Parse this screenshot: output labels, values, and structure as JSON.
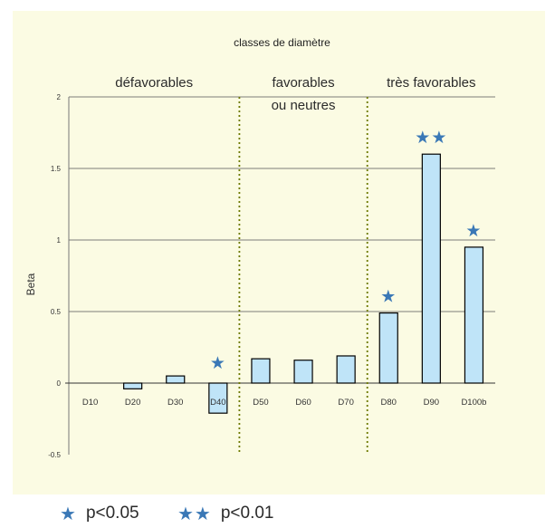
{
  "chart_data": {
    "type": "bar",
    "title": "classes de diamètre",
    "ylabel": "Beta",
    "xlabel": "",
    "categories": [
      "D10",
      "D20",
      "D30",
      "D40",
      "D50",
      "D60",
      "D70",
      "D80",
      "D90",
      "D100b"
    ],
    "values": [
      0,
      -0.04,
      0.05,
      -0.21,
      0.17,
      0.16,
      0.19,
      0.49,
      1.6,
      0.95
    ],
    "ylim": [
      -0.5,
      2
    ],
    "yticks": [
      "-0.5",
      "0",
      "0.5",
      "1",
      "1.5",
      "2"
    ],
    "ytick_values": [
      -0.5,
      0,
      0.5,
      1,
      1.5,
      2
    ],
    "grid": true,
    "bar_color": "#bfe4f8",
    "bar_edge_color": "#000000",
    "star_color": "#3a78b6",
    "significance": [
      "",
      "",
      "",
      "*",
      "",
      "",
      "",
      "*",
      "**",
      "*"
    ],
    "groups": [
      {
        "label": "défavorables",
        "from": 0,
        "to": 3
      },
      {
        "label": "favorables",
        "label2": "ou neutres",
        "from": 4,
        "to": 6
      },
      {
        "label": "très favorables",
        "from": 7,
        "to": 9
      }
    ],
    "dividers_after_index": [
      3,
      6
    ],
    "divider_color": "#6e7a00"
  },
  "legend": [
    {
      "stars": "★",
      "text": "p<0.05"
    },
    {
      "stars": "★★",
      "text": "p<0.01"
    }
  ]
}
